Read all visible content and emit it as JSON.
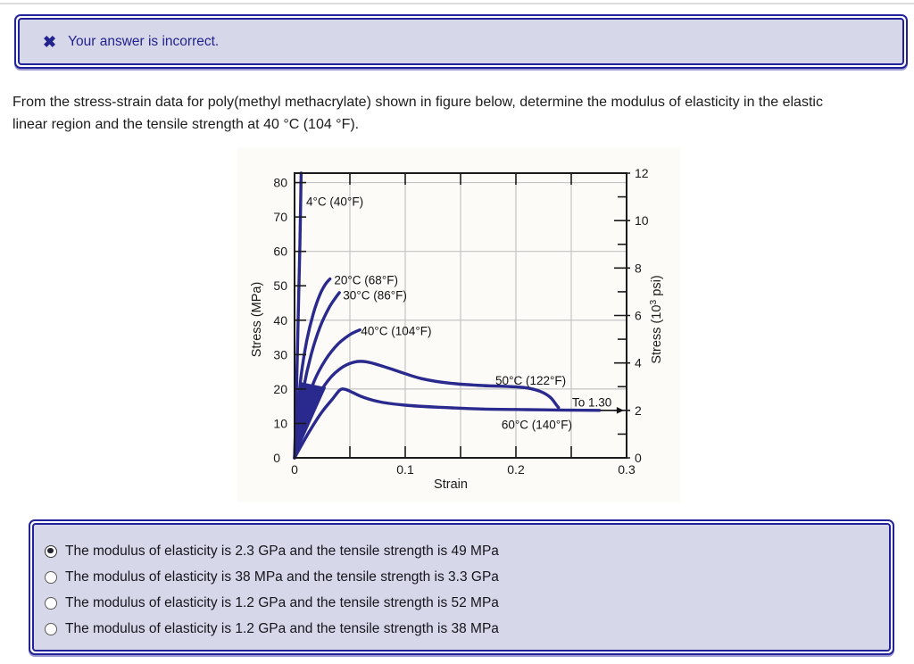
{
  "page": {
    "alert": {
      "icon": "✖",
      "text": "Your answer is incorrect."
    },
    "question": {
      "line1": "From the stress-strain data for poly(methyl methacrylate) shown in figure below, determine the modulus of elasticity in the elastic",
      "line2": "linear region and the tensile strength at 40 °C (104 °F)."
    },
    "options": {
      "items": [
        {
          "label": "The modulus of elasticity is 2.3 GPa and the tensile strength is 49 MPa",
          "selected": true
        },
        {
          "label": "The modulus of elasticity is 38 MPa and the tensile strength is 3.3 GPa",
          "selected": false
        },
        {
          "label": "The modulus of elasticity is 1.2 GPa and the tensile strength is 52 MPa",
          "selected": false
        },
        {
          "label": "The modulus of elasticity is 1.2 GPa and the tensile strength is 38 MPa",
          "selected": false
        }
      ]
    }
  },
  "chart_data": {
    "type": "line",
    "xlabel": "Strain",
    "ylabel_left": "Stress (MPa)",
    "ylabel_right": {
      "pre": "Stress (10",
      "sup": "3",
      "post": " psi)"
    },
    "xlim": [
      0,
      0.3
    ],
    "ylim_mpa": [
      0,
      82.74
    ],
    "ylim_psi": [
      0,
      12
    ],
    "x_ticks_labeled": [
      {
        "v": 0,
        "label": "0"
      },
      {
        "v": 0.1,
        "label": "0.1"
      },
      {
        "v": 0.2,
        "label": "0.2"
      },
      {
        "v": 0.3,
        "label": "0.3"
      }
    ],
    "x_ticks_minor": [
      0.05,
      0.1,
      0.15,
      0.2,
      0.25
    ],
    "y_ticks_left_mpa": [
      0,
      10,
      20,
      30,
      40,
      50,
      60,
      70,
      80
    ],
    "y_ticks_right_major_psi": [
      0,
      2,
      4,
      6,
      8,
      10,
      12
    ],
    "y_ticks_right_minor_psi": [
      1,
      3,
      5,
      7,
      9,
      11
    ],
    "grid_x": [
      0.05,
      0.1,
      0.15,
      0.2,
      0.25
    ],
    "grid_y_mpa": [
      20,
      40,
      60,
      80
    ],
    "series": [
      {
        "name": "4°C (40°F)",
        "points": [
          [
            0,
            0
          ],
          [
            0.0018,
            20
          ],
          [
            0.0034,
            42
          ],
          [
            0.0048,
            62
          ],
          [
            0.006,
            82.74
          ]
        ]
      },
      {
        "name": "20°C (68°F)",
        "points": [
          [
            0,
            0
          ],
          [
            0.0025,
            12
          ],
          [
            0.006,
            24
          ],
          [
            0.011,
            34
          ],
          [
            0.017,
            42
          ],
          [
            0.023,
            47.5
          ],
          [
            0.028,
            50.5
          ],
          [
            0.032,
            52
          ]
        ]
      },
      {
        "name": "30°C (86°F)",
        "points": [
          [
            0,
            0
          ],
          [
            0.003,
            9
          ],
          [
            0.008,
            20
          ],
          [
            0.015,
            30
          ],
          [
            0.023,
            38
          ],
          [
            0.031,
            43.5
          ],
          [
            0.037,
            46.5
          ],
          [
            0.0405,
            48
          ]
        ]
      },
      {
        "name": "40°C (104°F)",
        "points": [
          [
            0,
            0
          ],
          [
            0.004,
            7
          ],
          [
            0.01,
            15
          ],
          [
            0.018,
            22.5
          ],
          [
            0.028,
            28.5
          ],
          [
            0.039,
            33
          ],
          [
            0.05,
            35.8
          ],
          [
            0.059,
            37.2
          ]
        ]
      },
      {
        "name": "50°C (122°F)",
        "points": [
          [
            0,
            0
          ],
          [
            0.005,
            5.5
          ],
          [
            0.012,
            12
          ],
          [
            0.022,
            18.5
          ],
          [
            0.033,
            23.5
          ],
          [
            0.044,
            26.5
          ],
          [
            0.055,
            27.9
          ],
          [
            0.065,
            27.9
          ],
          [
            0.078,
            26.8
          ],
          [
            0.095,
            25
          ],
          [
            0.115,
            23
          ],
          [
            0.14,
            21.7
          ],
          [
            0.17,
            21
          ],
          [
            0.195,
            20.7
          ],
          [
            0.21,
            20.3
          ],
          [
            0.222,
            19.3
          ],
          [
            0.231,
            17.6
          ],
          [
            0.2365,
            15.4
          ],
          [
            0.2385,
            14.6
          ]
        ]
      },
      {
        "name": "60°C (140°F)",
        "points": [
          [
            0,
            0
          ],
          [
            0.006,
            3.5
          ],
          [
            0.014,
            8
          ],
          [
            0.024,
            13
          ],
          [
            0.034,
            17
          ],
          [
            0.041,
            19.7
          ],
          [
            0.046,
            19.9
          ],
          [
            0.053,
            18.9
          ],
          [
            0.063,
            17.5
          ],
          [
            0.078,
            16.2
          ],
          [
            0.1,
            15.3
          ],
          [
            0.13,
            14.7
          ],
          [
            0.17,
            14.2
          ],
          [
            0.21,
            14.0
          ],
          [
            0.25,
            13.85
          ],
          [
            0.2755,
            13.8
          ]
        ]
      }
    ],
    "origin_wedge": [
      [
        0,
        0
      ],
      [
        0.0285,
        20.5
      ],
      [
        0.006,
        22
      ]
    ],
    "annotations": [
      {
        "text": "4°C (40°F)",
        "x": 0.0105,
        "y": 74.5
      },
      {
        "text": "20°C (68°F)",
        "x": 0.0358,
        "y": 51.6
      },
      {
        "text": "30°C (86°F)",
        "x": 0.0438,
        "y": 47.2
      },
      {
        "text": "40°C (104°F)",
        "x": 0.06,
        "y": 36.8
      },
      {
        "text": "50°C (122°F)",
        "x": 0.1815,
        "y": 22.4
      },
      {
        "text": "60°C (140°F)",
        "x": 0.187,
        "y": 9.6
      }
    ],
    "arrow": {
      "x1": 0.2765,
      "x2": 0.2975,
      "y": 13.79,
      "label": "To 1.30",
      "label_x": 0.2508,
      "label_y": 15.9
    },
    "colors": {
      "curve": "#29298e",
      "grid": "#c4c4c4",
      "axis": "#1a1a1a",
      "figure_bg": "#fcfbf8"
    }
  }
}
